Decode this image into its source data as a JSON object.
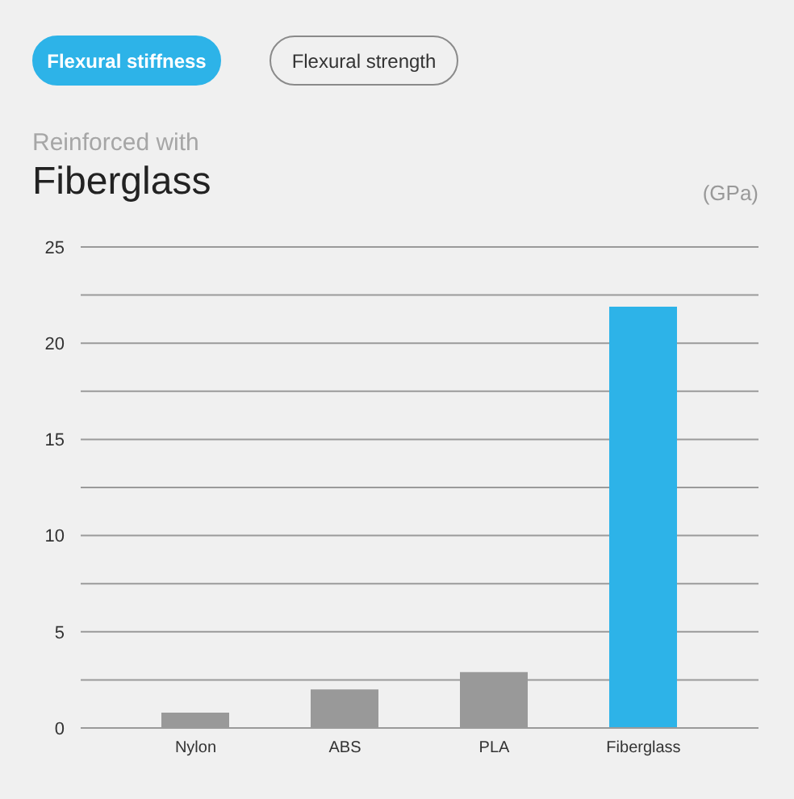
{
  "chart_data": {
    "type": "bar",
    "title": "Fiberglass",
    "subtitle": "Reinforced with",
    "ylabel": "(GPa)",
    "annotations": [
      "Flexural stiffness",
      "Flexural strength"
    ],
    "categories": [
      "Nylon",
      "ABS",
      "PLA",
      "Fiberglass"
    ],
    "values": [
      0.8,
      2.0,
      2.9,
      21.9
    ],
    "colors": [
      "#999999",
      "#999999",
      "#999999",
      "#2db3e8"
    ],
    "ylim": [
      0,
      25
    ],
    "yticks": [
      0,
      {
        "value": 2.5,
        "label": null
      },
      5,
      {
        "value": 7.5,
        "label": null
      },
      10,
      {
        "value": 12.5,
        "label": null
      },
      15,
      {
        "value": 17.5,
        "label": null
      },
      20,
      {
        "value": 22.5,
        "label": null
      },
      25
    ],
    "grid": "y"
  }
}
